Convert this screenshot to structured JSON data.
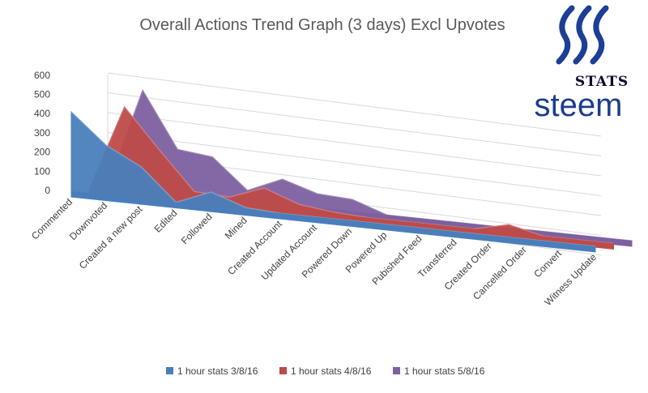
{
  "chart_data": {
    "type": "area",
    "title": "Overall Actions Trend Graph (3 days) Excl Upvotes",
    "categories": [
      "Commented",
      "Downvoted",
      "Created a new post",
      "Edited",
      "Followed",
      "Mined",
      "Created Account",
      "Updated Account",
      "Powered Down",
      "Powered Up",
      "Pubished Feed",
      "Transferred",
      "Created Order",
      "Cancelled Order",
      "Convert",
      "Witness Update"
    ],
    "y_ticks": [
      "0",
      "100",
      "200",
      "300",
      "400",
      "500",
      "600"
    ],
    "ylim": [
      0,
      600
    ],
    "grid": true,
    "legend_position": "bottom",
    "series": [
      {
        "name": "1 hour stats 3/8/16",
        "color": "#4a7ebb",
        "values": [
          400,
          250,
          160,
          0,
          70,
          10,
          0,
          0,
          0,
          0,
          0,
          0,
          0,
          0,
          0,
          0
        ]
      },
      {
        "name": "1 hour stats 4/8/16",
        "color": "#be4b48",
        "values": [
          0,
          430,
          230,
          40,
          30,
          95,
          30,
          10,
          0,
          0,
          0,
          0,
          40,
          0,
          0,
          0
        ]
      },
      {
        "name": "1 hour stats 5/8/16",
        "color": "#7d60a0",
        "values": [
          0,
          500,
          220,
          200,
          50,
          125,
          70,
          60,
          0,
          0,
          0,
          0,
          0,
          0,
          0,
          0
        ]
      }
    ]
  },
  "logo": {
    "stats_text": "STATS",
    "steem_text": "steem"
  }
}
